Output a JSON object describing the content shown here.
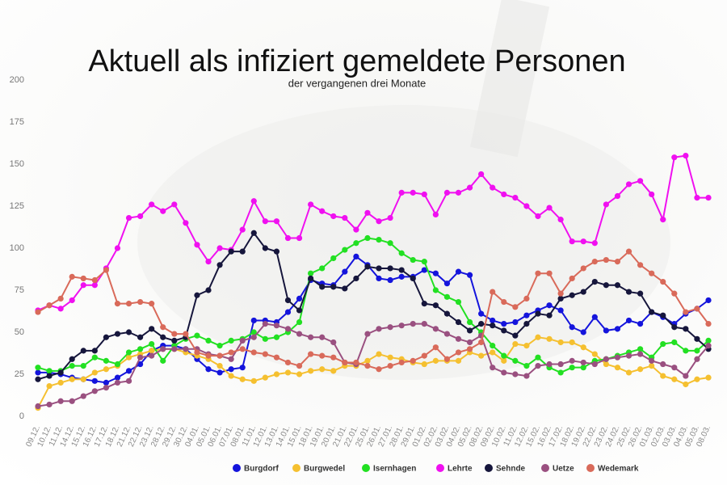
{
  "chart_data": {
    "type": "line",
    "title": "Aktuell als infiziert gemeldete Personen",
    "subtitle": "der vergangenen drei Monate",
    "categories": [
      "09.12.",
      "10.12.",
      "11.12.",
      "14.12.",
      "15.12.",
      "16.12.",
      "17.12.",
      "18.12.",
      "21.12.",
      "22.12.",
      "23.12.",
      "28.12.",
      "29.12.",
      "30.12.",
      "04.01.",
      "05.01.",
      "06.01.",
      "07.01.",
      "08.01.",
      "11.01.",
      "12.01.",
      "13.01.",
      "14.01.",
      "15.01.",
      "18.01.",
      "19.01.",
      "20.01.",
      "21.01.",
      "22.01.",
      "25.01.",
      "26.01.",
      "27.01.",
      "28.01.",
      "29.01.",
      "01.02.",
      "02.02.",
      "03.02.",
      "04.02.",
      "05.02.",
      "08.02.",
      "09.02.",
      "10.02.",
      "11.02.",
      "12.02.",
      "15.02.",
      "16.02.",
      "17.02.",
      "18.02.",
      "19.02.",
      "22.02.",
      "23.02.",
      "24.02.",
      "25.02.",
      "26.02.",
      "01.03.",
      "02.03.",
      "03.03.",
      "04.03.",
      "05.03.",
      "08.03."
    ],
    "series": [
      {
        "name": "Burgdorf",
        "color": "#1414dc",
        "values": [
          26,
          26,
          25,
          23,
          22,
          21,
          20,
          23,
          27,
          31,
          39,
          42,
          42,
          40,
          34,
          28,
          26,
          28,
          29,
          57,
          57,
          56,
          62,
          70,
          81,
          79,
          78,
          86,
          95,
          90,
          82,
          81,
          83,
          83,
          87,
          85,
          79,
          86,
          84,
          61,
          57,
          55,
          56,
          60,
          63,
          66,
          63,
          53,
          50,
          59,
          51,
          52,
          57,
          55,
          62,
          59,
          55,
          61,
          64,
          69
        ]
      },
      {
        "name": "Burgwedel",
        "color": "#f5c030",
        "values": [
          5,
          18,
          20,
          22,
          22,
          26,
          28,
          30,
          35,
          37,
          39,
          40,
          40,
          38,
          36,
          34,
          30,
          24,
          22,
          21,
          23,
          25,
          26,
          25,
          27,
          28,
          27,
          30,
          30,
          33,
          37,
          35,
          34,
          32,
          31,
          33,
          33,
          33,
          38,
          36,
          38,
          33,
          43,
          42,
          47,
          46,
          44,
          44,
          41,
          37,
          31,
          29,
          26,
          28,
          30,
          24,
          22,
          19,
          22,
          23
        ]
      },
      {
        "name": "Isernhagen",
        "color": "#22e022",
        "values": [
          29,
          27,
          27,
          30,
          30,
          35,
          33,
          31,
          38,
          40,
          43,
          33,
          42,
          46,
          48,
          45,
          42,
          45,
          46,
          50,
          46,
          47,
          50,
          56,
          85,
          88,
          94,
          99,
          103,
          106,
          105,
          103,
          97,
          93,
          92,
          75,
          71,
          68,
          56,
          50,
          42,
          36,
          33,
          30,
          35,
          29,
          26,
          29,
          29,
          33,
          34,
          36,
          38,
          40,
          35,
          43,
          44,
          39,
          39,
          45
        ]
      },
      {
        "name": "Lehrte",
        "color": "#f010f0",
        "values": [
          63,
          66,
          64,
          69,
          78,
          78,
          88,
          100,
          118,
          119,
          126,
          122,
          126,
          115,
          102,
          92,
          100,
          99,
          111,
          128,
          116,
          116,
          106,
          106,
          126,
          122,
          119,
          118,
          111,
          121,
          116,
          118,
          133,
          133,
          132,
          120,
          133,
          133,
          136,
          144,
          136,
          132,
          130,
          125,
          119,
          124,
          117,
          104,
          104,
          103,
          126,
          131,
          138,
          140,
          132,
          117,
          154,
          155,
          130,
          130
        ]
      },
      {
        "name": "Sehnde",
        "color": "#16163c",
        "values": [
          22,
          24,
          26,
          34,
          39,
          39,
          47,
          49,
          50,
          47,
          52,
          47,
          45,
          47,
          72,
          75,
          90,
          98,
          98,
          109,
          100,
          98,
          69,
          63,
          82,
          77,
          77,
          76,
          82,
          89,
          88,
          88,
          87,
          82,
          67,
          66,
          61,
          56,
          51,
          55,
          54,
          51,
          48,
          55,
          61,
          60,
          70,
          72,
          74,
          80,
          78,
          78,
          74,
          73,
          62,
          60,
          53,
          52,
          46,
          40
        ]
      },
      {
        "name": "Uetze",
        "color": "#9a5080",
        "values": [
          6,
          7,
          9,
          9,
          12,
          15,
          17,
          20,
          21,
          35,
          36,
          40,
          40,
          40,
          40,
          37,
          36,
          34,
          45,
          47,
          55,
          54,
          52,
          49,
          47,
          47,
          44,
          32,
          31,
          49,
          52,
          53,
          54,
          55,
          55,
          52,
          49,
          46,
          44,
          48,
          29,
          26,
          25,
          24,
          30,
          31,
          31,
          33,
          32,
          31,
          34,
          35,
          36,
          37,
          33,
          31,
          29,
          24,
          34,
          42
        ]
      },
      {
        "name": "Wedemark",
        "color": "#d96a5a",
        "values": [
          62,
          66,
          70,
          83,
          82,
          81,
          87,
          67,
          67,
          68,
          67,
          53,
          49,
          49,
          38,
          36,
          36,
          38,
          40,
          38,
          37,
          35,
          32,
          30,
          37,
          36,
          35,
          32,
          32,
          30,
          28,
          30,
          32,
          33,
          36,
          41,
          34,
          38,
          40,
          44,
          74,
          68,
          65,
          70,
          85,
          85,
          73,
          82,
          88,
          92,
          93,
          92,
          98,
          90,
          85,
          80,
          73,
          62,
          64,
          55
        ]
      }
    ],
    "ylim": [
      0,
      200
    ],
    "yticks": [
      0,
      25,
      50,
      75,
      100,
      125,
      150,
      175,
      200
    ],
    "grid": false
  }
}
